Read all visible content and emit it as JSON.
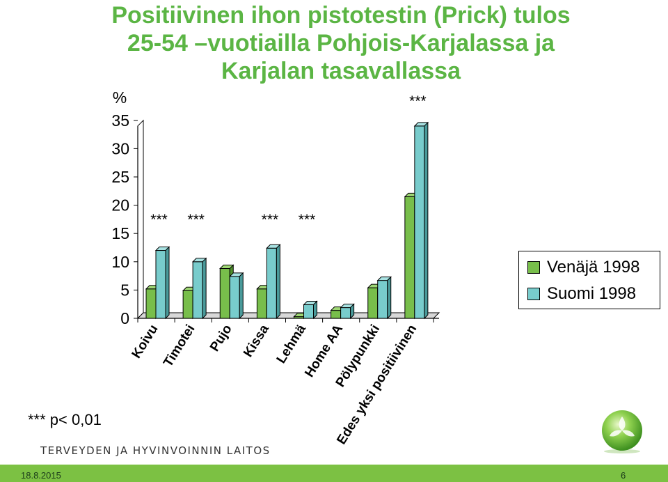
{
  "slide": {
    "title_lines": [
      "Positiivinen ihon pistotestin (Prick) tulos",
      "25-54 –vuotiailla Pohjois-Karjalassa ja",
      "Karjalan tasavallassa"
    ],
    "note": "*** p< 0,01",
    "organization": "TERVEYDEN JA HYVINVOINNIN LAITOS",
    "footer_date": "18.8.2015",
    "footer_page": "6"
  },
  "colors": {
    "series1": "#78be4b",
    "series2": "#78cccc",
    "title": "#5bb544",
    "footer": "#7cc143"
  },
  "chart_data": {
    "type": "bar",
    "ylabel": "%",
    "ylim": [
      0,
      35
    ],
    "yticks": [
      0,
      5,
      10,
      15,
      20,
      25,
      30,
      35
    ],
    "categories": [
      "Koivu",
      "Timotei",
      "Pujo",
      "Kissa",
      "Lehmä",
      "Home AA",
      "Pölypunkki",
      "Edes yksi positiivinen"
    ],
    "series": [
      {
        "name": "Venäjä 1998",
        "values": [
          5.2,
          4.9,
          8.8,
          5.2,
          0.3,
          1.4,
          5.4,
          21.5
        ]
      },
      {
        "name": "Suomi 1998",
        "values": [
          12.0,
          10.0,
          7.4,
          12.4,
          2.4,
          1.9,
          6.7,
          34.0
        ]
      }
    ],
    "annotations": [
      {
        "category": "Koivu",
        "text": "***"
      },
      {
        "category": "Timotei",
        "text": "***"
      },
      {
        "category": "Kissa",
        "text": "***"
      },
      {
        "category": "Lehmä",
        "text": "***"
      },
      {
        "category": "Edes yksi positiivinen",
        "text": "***"
      }
    ],
    "legend_position": "right"
  }
}
